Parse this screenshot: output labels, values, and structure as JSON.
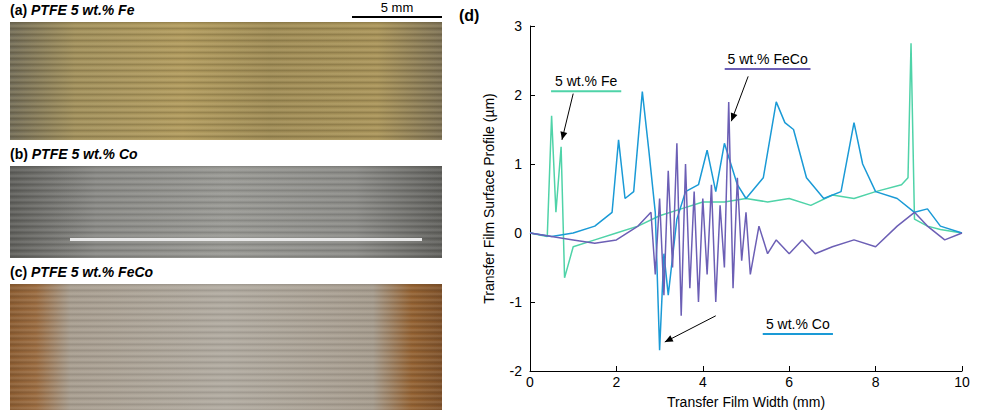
{
  "photos": [
    {
      "letter": "(a)",
      "title": "PTFE 5 wt.% Fe"
    },
    {
      "letter": "(b)",
      "title": "PTFE 5 wt.% Co"
    },
    {
      "letter": "(c)",
      "title": "PTFE 5 wt.% FeCo"
    }
  ],
  "scale_bar": "5 mm",
  "chart_data": {
    "type": "line",
    "title": "(d)",
    "x_label": "Transfer Film Width (mm)",
    "y_label": "Transfer Film Surface Profile (µm)",
    "xlim": [
      0,
      10
    ],
    "xticks": [
      0,
      2,
      4,
      6,
      8,
      10
    ],
    "ylim": [
      -2,
      3
    ],
    "yticks": [
      -2,
      -1,
      0,
      1,
      2,
      3
    ],
    "grid": false,
    "series": [
      {
        "name": "5 wt.% Fe",
        "color": "#4fd3a8",
        "x": [
          0,
          0.4,
          0.5,
          0.6,
          0.72,
          0.8,
          1.0,
          1.5,
          2,
          2.5,
          3,
          3.5,
          4,
          4.5,
          5,
          5.5,
          6,
          6.5,
          7,
          7.5,
          8,
          8.6,
          8.75,
          8.82,
          8.9,
          9.2,
          9.5,
          10
        ],
        "values": [
          0,
          -0.05,
          1.7,
          0.3,
          1.25,
          -0.65,
          -0.2,
          -0.1,
          0,
          0.1,
          0.25,
          0.35,
          0.45,
          0.45,
          0.5,
          0.45,
          0.5,
          0.4,
          0.55,
          0.5,
          0.6,
          0.7,
          0.8,
          2.75,
          0.2,
          0.1,
          0.05,
          0
        ]
      },
      {
        "name": "5 wt.% Co",
        "color": "#1a9ad6",
        "x": [
          0,
          0.5,
          1,
          1.5,
          1.9,
          2.05,
          2.2,
          2.4,
          2.6,
          2.75,
          2.9,
          3.0,
          3.1,
          3.2,
          3.4,
          3.6,
          3.9,
          4.1,
          4.3,
          4.5,
          4.8,
          5.0,
          5.4,
          5.7,
          5.9,
          6.1,
          6.4,
          6.8,
          7.2,
          7.5,
          7.7,
          8.0,
          8.5,
          8.9,
          9.2,
          9.5,
          10
        ],
        "values": [
          0,
          -0.05,
          0,
          0.1,
          0.3,
          1.35,
          0.5,
          0.6,
          2.05,
          1.2,
          0.3,
          -1.7,
          -0.3,
          -0.9,
          0.2,
          0.6,
          0.7,
          1.2,
          0.6,
          1.3,
          0.7,
          0.5,
          0.8,
          1.9,
          1.6,
          1.5,
          0.8,
          0.5,
          0.6,
          1.6,
          1.0,
          0.6,
          0.5,
          0.3,
          0.35,
          0.1,
          0
        ]
      },
      {
        "name": "5 wt.% FeCo",
        "color": "#6c5fb5",
        "x": [
          0,
          0.5,
          1,
          1.5,
          2,
          2.5,
          2.8,
          2.9,
          3.0,
          3.1,
          3.2,
          3.3,
          3.4,
          3.5,
          3.6,
          3.7,
          3.8,
          3.9,
          4.0,
          4.1,
          4.2,
          4.3,
          4.4,
          4.5,
          4.6,
          4.7,
          4.8,
          4.9,
          5.0,
          5.1,
          5.3,
          5.5,
          5.7,
          6.0,
          6.3,
          6.6,
          7.0,
          7.5,
          8.0,
          8.5,
          8.9,
          9.2,
          9.6,
          10
        ],
        "values": [
          0,
          -0.05,
          -0.1,
          -0.15,
          -0.1,
          0.1,
          0.3,
          -0.6,
          0.5,
          -0.9,
          0.9,
          -0.5,
          1.3,
          -1.2,
          1.0,
          -0.8,
          0.6,
          -1.0,
          0.5,
          -0.6,
          0.7,
          -1.0,
          0.4,
          -0.5,
          1.9,
          -0.8,
          0.8,
          -0.4,
          0.3,
          -0.6,
          0.1,
          -0.3,
          -0.1,
          -0.3,
          -0.1,
          -0.3,
          -0.2,
          -0.1,
          -0.2,
          0.1,
          0.3,
          0.1,
          -0.1,
          0
        ]
      }
    ]
  }
}
